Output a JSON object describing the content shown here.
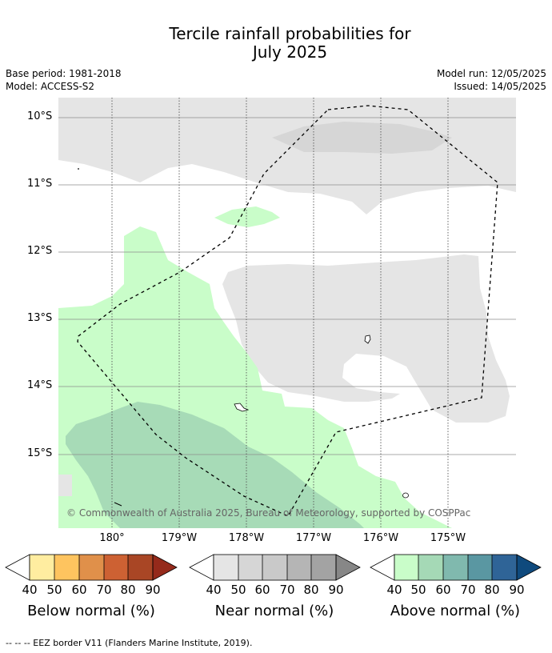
{
  "title_line1": "Tercile rainfall probabilities for",
  "title_line2": "July 2025",
  "meta": {
    "base_period": "Base period: 1981-2018",
    "model": "Model: ACCESS-S2",
    "model_run": "Model run: 12/05/2025",
    "issued": "Issued: 14/05/2025"
  },
  "map": {
    "lat_labels": [
      "10°S",
      "11°S",
      "12°S",
      "13°S",
      "14°S",
      "15°S"
    ],
    "lon_labels": [
      "180°",
      "179°W",
      "178°W",
      "177°W",
      "176°W",
      "175°W"
    ],
    "copyright": "© Commonwealth of Australia 2025, Bureau of Meteorology, supported by COSPPac"
  },
  "colorbars": {
    "ticks": [
      "40",
      "50",
      "60",
      "70",
      "80",
      "90"
    ],
    "below": {
      "title": "Below normal (%)",
      "colors": [
        "#ffeda0",
        "#fec45f",
        "#e0904a",
        "#cd6133",
        "#a94625",
        "#952a1b"
      ]
    },
    "near": {
      "title": "Near normal (%)",
      "colors": [
        "#e5e5e5",
        "#d6d6d6",
        "#c9c9c9",
        "#b5b5b5",
        "#a3a3a3",
        "#878787"
      ]
    },
    "above": {
      "title": "Above normal (%)",
      "colors": [
        "#c9fdc9",
        "#a5d9b6",
        "#80b9ae",
        "#5a97a2",
        "#2f6497",
        "#0f4a7d"
      ]
    }
  },
  "footnote": "--  --  -- EEZ border V11 (Flanders Marine Institute, 2019)."
}
